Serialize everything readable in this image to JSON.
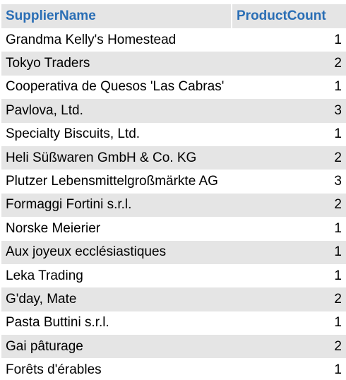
{
  "table": {
    "columns": [
      "SupplierName",
      "ProductCount"
    ],
    "rows": [
      [
        "Grandma Kelly's Homestead",
        "1"
      ],
      [
        "Tokyo Traders",
        "2"
      ],
      [
        "Cooperativa de Quesos 'Las Cabras'",
        "1"
      ],
      [
        "Pavlova, Ltd.",
        "3"
      ],
      [
        "Specialty Biscuits, Ltd.",
        "1"
      ],
      [
        "Heli Süßwaren GmbH & Co. KG",
        "2"
      ],
      [
        "Plutzer Lebensmittelgroßmärkte AG",
        "3"
      ],
      [
        "Formaggi Fortini s.r.l.",
        "2"
      ],
      [
        "Norske Meierier",
        "1"
      ],
      [
        "Aux joyeux ecclésiastiques",
        "1"
      ],
      [
        "Leka Trading",
        "1"
      ],
      [
        "G'day, Mate",
        "2"
      ],
      [
        "Pasta Buttini s.r.l.",
        "1"
      ],
      [
        "Gai pâturage",
        "2"
      ],
      [
        "Forêts d'érables",
        "1"
      ]
    ]
  },
  "colors": {
    "header_text": "#2a6eb5",
    "stripe": "#e5e5e5"
  }
}
